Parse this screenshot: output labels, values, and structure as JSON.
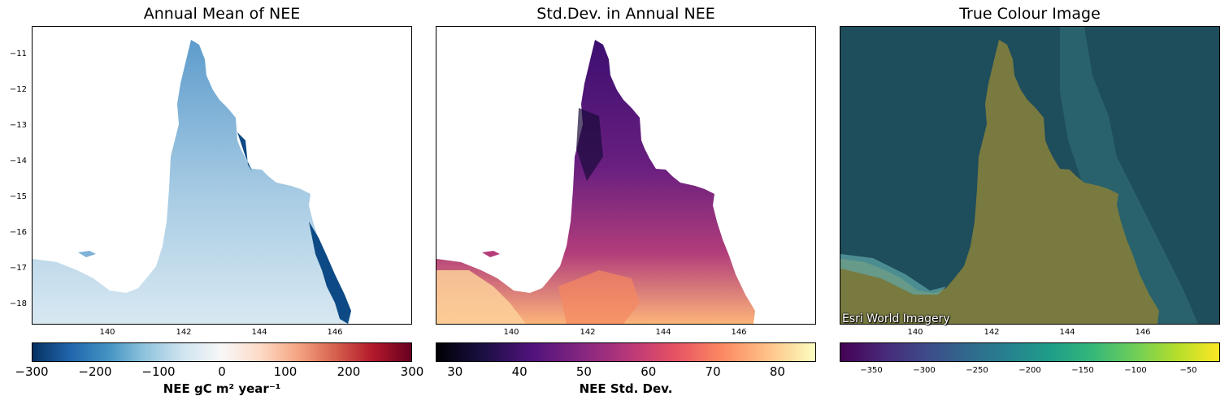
{
  "chart_data": [
    {
      "type": "heatmap",
      "title": "Annual Mean of NEE",
      "x_ticks": [
        "140",
        "142",
        "144",
        "146"
      ],
      "y_ticks": [
        "−11",
        "−12",
        "−13",
        "−14",
        "−15",
        "−16",
        "−17",
        "−18"
      ],
      "colorbar": {
        "ticks": [
          "−300",
          "−200",
          "−100",
          "0",
          "100",
          "200",
          "300"
        ],
        "range": [
          -300,
          300
        ],
        "colormap": "RdBu_r",
        "label": "NEE gC m² year⁻¹"
      }
    },
    {
      "type": "heatmap",
      "title": "Std.Dev. in Annual NEE",
      "x_ticks": [
        "140",
        "142",
        "144",
        "146"
      ],
      "colorbar": {
        "ticks": [
          "30",
          "40",
          "50",
          "60",
          "70",
          "80"
        ],
        "range": [
          27,
          86
        ],
        "colormap": "magma",
        "label": "NEE Std. Dev."
      }
    },
    {
      "type": "image",
      "title": "True Colour Image",
      "x_ticks": [
        "140",
        "142",
        "144",
        "146"
      ],
      "attribution": "Esri World Imagery",
      "colorbar": {
        "ticks": [
          "−350",
          "−300",
          "−250",
          "−200",
          "−150",
          "−100",
          "−50"
        ],
        "range": [
          -380,
          -20
        ],
        "colormap": "viridis"
      }
    }
  ],
  "colors": {
    "mean_land": "#9ec8e2",
    "std_land": "#7a2b84",
    "ocean_rgb": "#1e4d5c",
    "land_rgb": "#7a7a3c"
  }
}
